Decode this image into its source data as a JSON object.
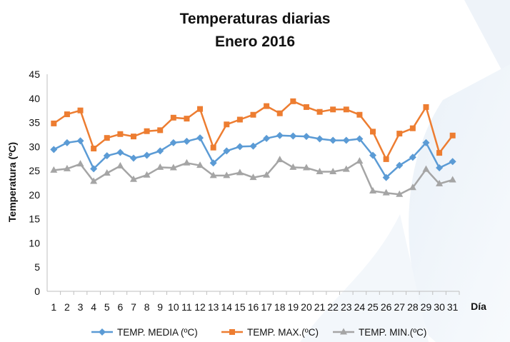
{
  "chart_data": {
    "type": "line",
    "title": "Temperaturas diarias",
    "subtitle": "Enero 2016",
    "xlabel": "Día",
    "ylabel": "Temperatura (ºC)",
    "ylim": [
      0,
      45
    ],
    "yticks": [
      0,
      5,
      10,
      15,
      20,
      25,
      30,
      35,
      40,
      45
    ],
    "grid": false,
    "legend_position": "bottom",
    "x": [
      1,
      2,
      3,
      4,
      5,
      6,
      7,
      8,
      9,
      10,
      11,
      12,
      13,
      14,
      15,
      16,
      17,
      18,
      19,
      20,
      21,
      22,
      23,
      24,
      25,
      26,
      27,
      28,
      29,
      30,
      31
    ],
    "series": [
      {
        "name": "TEMP. MEDIA (ºC)",
        "color": "#5b9bd5",
        "marker": "diamond",
        "values": [
          29.4,
          30.8,
          31.2,
          25.4,
          28.1,
          28.8,
          27.6,
          28.2,
          29.1,
          30.8,
          31.1,
          31.8,
          26.6,
          29.1,
          30.0,
          30.1,
          31.7,
          32.3,
          32.2,
          32.1,
          31.6,
          31.3,
          31.3,
          31.6,
          28.2,
          23.6,
          26.1,
          27.8,
          30.8,
          25.6,
          26.9
        ]
      },
      {
        "name": "TEMP. MAX.(ºC)",
        "color": "#ed7d31",
        "marker": "square",
        "values": [
          34.8,
          36.7,
          37.5,
          29.6,
          31.8,
          32.6,
          32.1,
          33.2,
          33.4,
          36.0,
          35.8,
          37.8,
          29.8,
          34.6,
          35.6,
          36.6,
          38.4,
          36.9,
          39.4,
          38.2,
          37.2,
          37.7,
          37.7,
          36.6,
          33.1,
          27.4,
          32.7,
          33.8,
          38.2,
          28.7,
          32.3
        ]
      },
      {
        "name": "TEMP. MIN.(ºC)",
        "color": "#a5a5a5",
        "marker": "triangle",
        "values": [
          25.1,
          25.4,
          26.4,
          22.8,
          24.5,
          26.0,
          23.2,
          24.1,
          25.7,
          25.6,
          26.6,
          26.1,
          24.0,
          24.0,
          24.6,
          23.6,
          24.1,
          27.3,
          25.7,
          25.6,
          24.8,
          24.8,
          25.3,
          27.0,
          20.8,
          20.4,
          20.1,
          21.5,
          25.3,
          22.3,
          23.1
        ]
      }
    ]
  }
}
